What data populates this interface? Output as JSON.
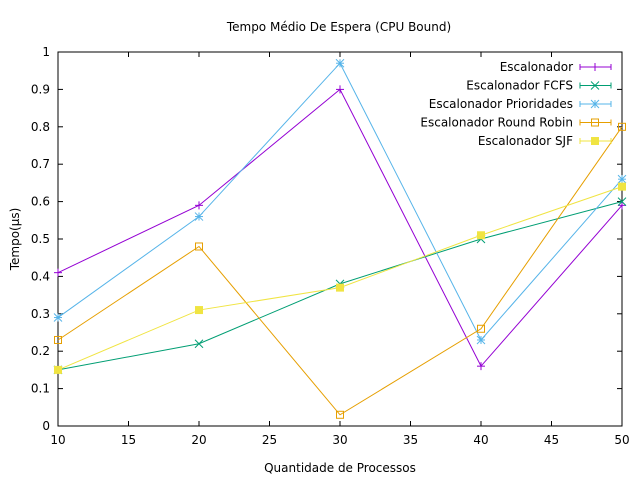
{
  "chart_data": {
    "type": "line",
    "title": "Tempo Médio De Espera (CPU Bound)",
    "xlabel": "Quantidade de Processos",
    "ylabel": "Tempo(μs)",
    "xlim": [
      10,
      50
    ],
    "ylim": [
      0,
      1
    ],
    "x_ticks": [
      "10",
      "15",
      "20",
      "25",
      "30",
      "35",
      "40",
      "45",
      "50"
    ],
    "y_ticks": [
      "0",
      "0.1",
      "0.2",
      "0.3",
      "0.4",
      "0.5",
      "0.6",
      "0.7",
      "0.8",
      "0.9",
      "1"
    ],
    "x": [
      10,
      20,
      30,
      40,
      50
    ],
    "grid": false,
    "legend_position": "top-right",
    "series": [
      {
        "name": "Escalonador",
        "color": "#9400d3",
        "marker": "plus",
        "values": [
          0.41,
          0.59,
          0.9,
          0.16,
          0.59
        ]
      },
      {
        "name": "Escalonador FCFS",
        "color": "#009e73",
        "marker": "cross",
        "values": [
          0.15,
          0.22,
          0.38,
          0.5,
          0.6
        ]
      },
      {
        "name": "Escalonador Prioridades",
        "color": "#56b4e9",
        "marker": "star",
        "values": [
          0.29,
          0.56,
          0.97,
          0.23,
          0.66
        ]
      },
      {
        "name": "Escalonador Round Robin",
        "color": "#e69f00",
        "marker": "open-square",
        "values": [
          0.23,
          0.48,
          0.03,
          0.26,
          0.8
        ]
      },
      {
        "name": "Escalonador SJF",
        "color": "#f0e442",
        "marker": "filled-square",
        "values": [
          0.15,
          0.31,
          0.37,
          0.51,
          0.64
        ]
      }
    ]
  }
}
